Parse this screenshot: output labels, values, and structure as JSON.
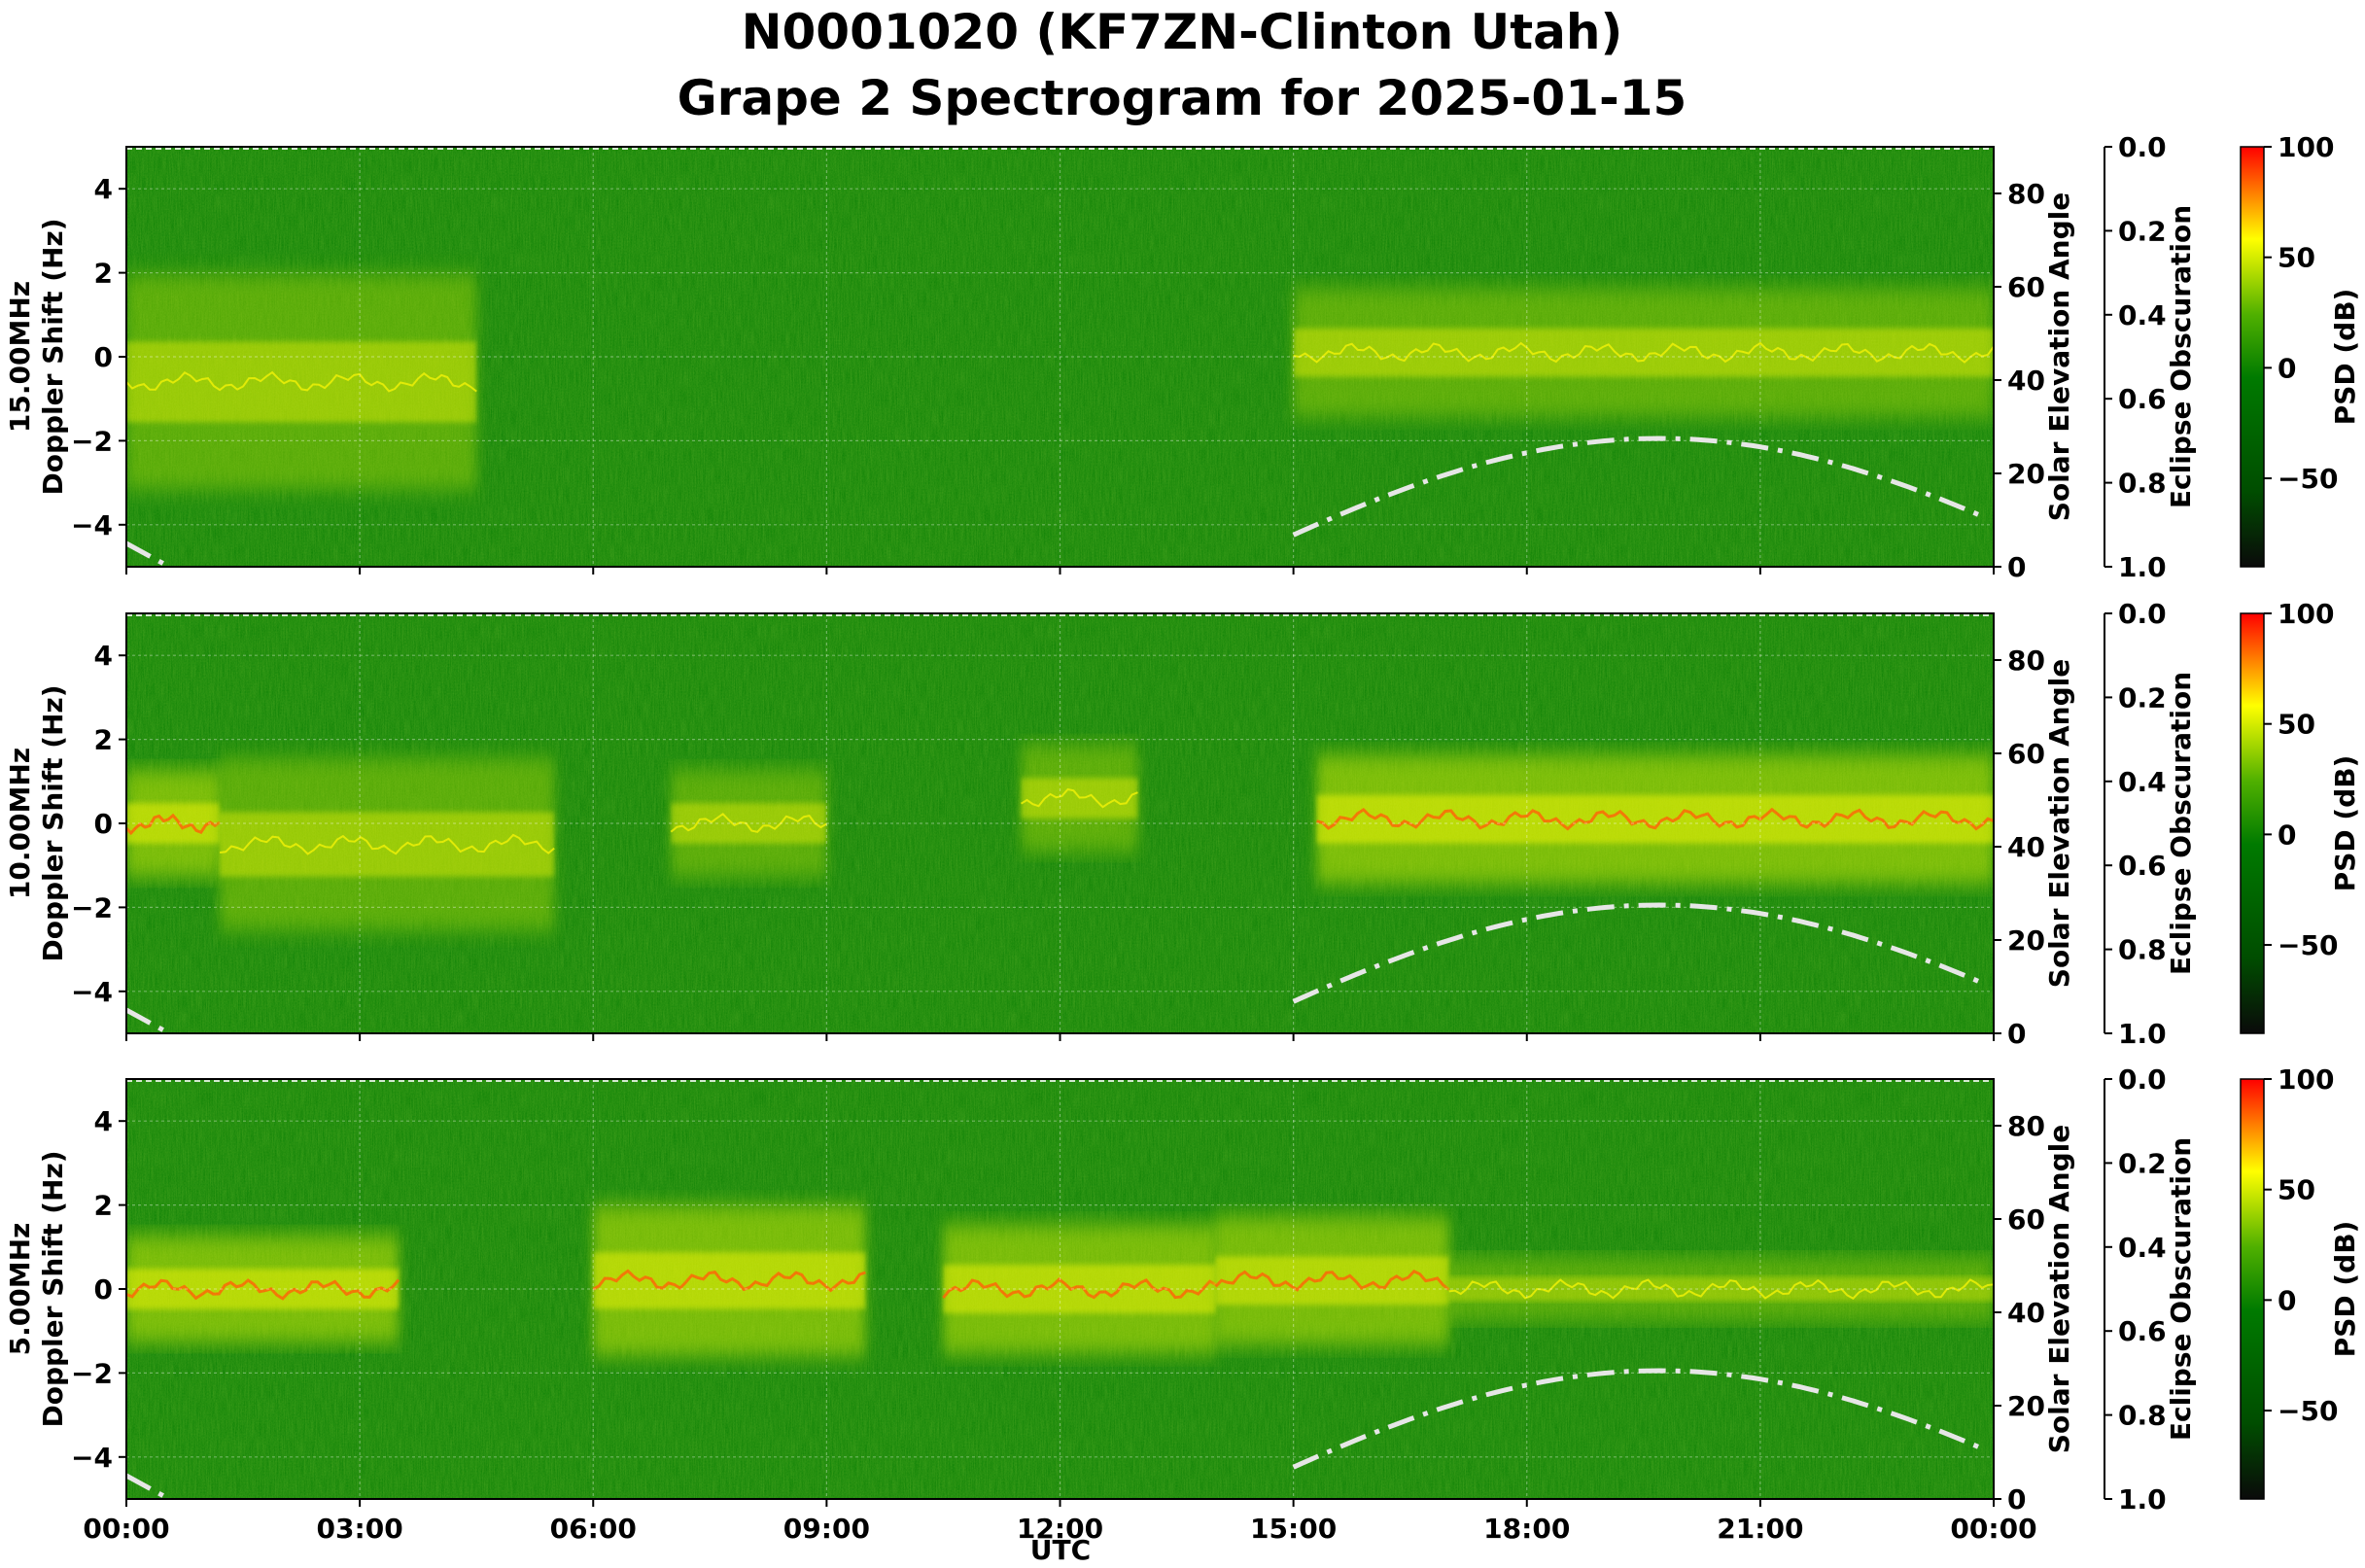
{
  "title_line1": "N0001020 (KF7ZN-Clinton Utah)",
  "title_line2": "Grape 2 Spectrogram for 2025-01-15",
  "chart_data": {
    "type": "heatmap",
    "x_axis": {
      "label": "UTC",
      "range": [
        "00:00",
        "24:00"
      ],
      "ticks": [
        "00:00",
        "03:00",
        "06:00",
        "09:00",
        "12:00",
        "15:00",
        "18:00",
        "21:00",
        "00:00"
      ]
    },
    "y_axis": {
      "label": "Doppler Shift (Hz)",
      "range": [
        -5,
        5
      ],
      "ticks": [
        -4,
        -2,
        0,
        2,
        4
      ]
    },
    "right_axis": {
      "label": "Solar Elevation Angle",
      "range": [
        0,
        90
      ],
      "ticks": [
        0,
        20,
        40,
        60,
        80
      ]
    },
    "eclipse_axis": {
      "label": "Eclipse Obscuration",
      "range": [
        1.0,
        0.0
      ],
      "ticks": [
        "0.0",
        "0.2",
        "0.4",
        "0.6",
        "0.8",
        "1.0"
      ]
    },
    "colorbar": {
      "label": "PSD (dB)",
      "range": [
        -90,
        100
      ],
      "ticks": [
        100,
        50,
        0,
        -50
      ],
      "colors": [
        "#1a1a1a",
        "#006400",
        "#9acd32",
        "#ffff00",
        "#ff0000"
      ]
    },
    "grid": true,
    "panels": [
      {
        "label": "15.00MHz",
        "activity": [
          {
            "start_h": 0.0,
            "end_h": 4.5,
            "center_hz": -0.6,
            "spread_hz": 1.0,
            "level": 0.55
          },
          {
            "start_h": 15.0,
            "end_h": 24.0,
            "center_hz": 0.1,
            "spread_hz": 0.6,
            "level": 0.6
          }
        ]
      },
      {
        "label": "10.00MHz",
        "activity": [
          {
            "start_h": 0.0,
            "end_h": 1.2,
            "center_hz": 0.0,
            "spread_hz": 0.5,
            "level": 0.9
          },
          {
            "start_h": 1.2,
            "end_h": 5.5,
            "center_hz": -0.5,
            "spread_hz": 0.8,
            "level": 0.55
          },
          {
            "start_h": 7.0,
            "end_h": 9.0,
            "center_hz": 0.0,
            "spread_hz": 0.5,
            "level": 0.55
          },
          {
            "start_h": 11.5,
            "end_h": 13.0,
            "center_hz": 0.6,
            "spread_hz": 0.5,
            "level": 0.6
          },
          {
            "start_h": 15.3,
            "end_h": 24.0,
            "center_hz": 0.1,
            "spread_hz": 0.6,
            "level": 0.95
          }
        ]
      },
      {
        "label": "5.00MHz",
        "activity": [
          {
            "start_h": 0.0,
            "end_h": 3.5,
            "center_hz": 0.0,
            "spread_hz": 0.5,
            "level": 0.9
          },
          {
            "start_h": 6.0,
            "end_h": 9.5,
            "center_hz": 0.2,
            "spread_hz": 0.7,
            "level": 0.85
          },
          {
            "start_h": 10.5,
            "end_h": 14.0,
            "center_hz": 0.0,
            "spread_hz": 0.6,
            "level": 0.85
          },
          {
            "start_h": 14.0,
            "end_h": 17.0,
            "center_hz": 0.2,
            "spread_hz": 0.6,
            "level": 0.8
          },
          {
            "start_h": 17.0,
            "end_h": 24.0,
            "center_hz": 0.0,
            "spread_hz": 0.3,
            "level": 0.4
          }
        ]
      }
    ],
    "solar_elevation_deg": {
      "x_hours": [
        0.0,
        0.5,
        15.0,
        16.0,
        17.0,
        18.0,
        19.0,
        19.7,
        20.5,
        21.5,
        22.5,
        23.3,
        24.0
      ],
      "y_deg": [
        5,
        0,
        0,
        7.5,
        15.5,
        22,
        26.5,
        27.5,
        26.5,
        22.5,
        16,
        10,
        4
      ]
    }
  }
}
